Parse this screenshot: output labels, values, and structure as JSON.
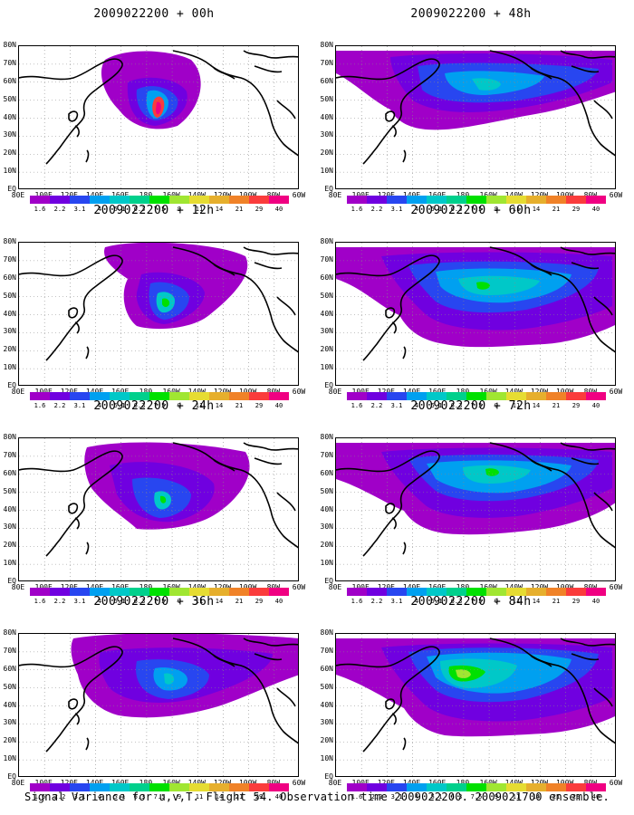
{
  "footer": "Signal Variance for u,v,T. Flight 54. Observation time 2009022200. 2009021700 ensemble.",
  "lat_labels": [
    "80N",
    "70N",
    "60N",
    "50N",
    "40N",
    "30N",
    "20N",
    "10N",
    "EQ"
  ],
  "lon_labels": [
    "80E",
    "100E",
    "120E",
    "140E",
    "160E",
    "180",
    "160W",
    "140W",
    "120W",
    "100W",
    "80W",
    "60W"
  ],
  "colorbar": {
    "labels": [
      "1.6",
      "2.2",
      "3.1",
      "4",
      "5.1",
      "6.3",
      "7.5",
      "9",
      "11",
      "14",
      "21",
      "29",
      "40"
    ],
    "colors": [
      "#a000c8",
      "#7000e0",
      "#2846f0",
      "#00a0f0",
      "#00c8c8",
      "#00d08c",
      "#00e000",
      "#a0e632",
      "#e6dc32",
      "#e6af2d",
      "#f08228",
      "#fa3c3c",
      "#f00082"
    ]
  },
  "panels": [
    {
      "title": "2009022200 + 00h",
      "forecast_hour": 0,
      "shown_levels": [
        0,
        1,
        2,
        3,
        4,
        5,
        6,
        11,
        12
      ]
    },
    {
      "title": "2009022200 + 12h",
      "forecast_hour": 12,
      "shown_levels": [
        0,
        1,
        2,
        3,
        4,
        5,
        6
      ]
    },
    {
      "title": "2009022200 + 24h",
      "forecast_hour": 24,
      "shown_levels": [
        0,
        1,
        2,
        3,
        4,
        5,
        6
      ]
    },
    {
      "title": "2009022200 + 36h",
      "forecast_hour": 36,
      "shown_levels": [
        0,
        1,
        2,
        3,
        4
      ]
    },
    {
      "title": "2009022200 + 48h",
      "forecast_hour": 48,
      "shown_levels": [
        0,
        1,
        2,
        3,
        4
      ]
    },
    {
      "title": "2009022200 + 60h",
      "forecast_hour": 60,
      "shown_levels": [
        0,
        1,
        2,
        3,
        4,
        5,
        6
      ]
    },
    {
      "title": "2009022200 + 72h",
      "forecast_hour": 72,
      "shown_levels": [
        0,
        1,
        2,
        3,
        4,
        5,
        6
      ]
    },
    {
      "title": "2009022200 + 84h",
      "forecast_hour": 84,
      "shown_levels": [
        0,
        1,
        2,
        3,
        4,
        5,
        6,
        7
      ]
    }
  ]
}
